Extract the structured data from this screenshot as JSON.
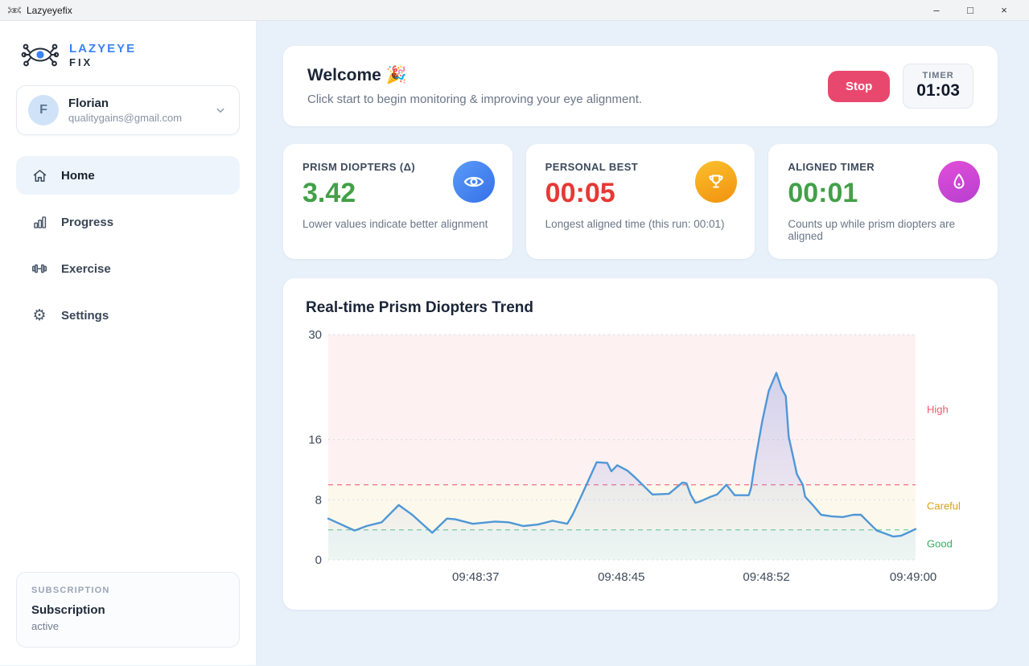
{
  "titlebar": {
    "app_name": "Lazyeyefix",
    "controls": {
      "minimize": "–",
      "maximize": "□",
      "close": "×"
    }
  },
  "colors": {
    "accent_blue": "#3b82f6",
    "stop_button": "#e9486e",
    "value_green": "#43a047",
    "value_red": "#e53935",
    "line_blue": "#4f97d7",
    "icon_circle_blue": "#4285f4",
    "icon_circle_orange": "#f6a21c",
    "icon_circle_magenta": "#cf3fd4"
  },
  "sidebar": {
    "logo": {
      "line1": "LAZYEYE",
      "line2": "FIX",
      "icon": "eye-network-logo"
    },
    "user": {
      "initial": "F",
      "name": "Florian",
      "email": "qualitygains@gmail.com",
      "chevron": "chevron-down-icon"
    },
    "nav": [
      {
        "label": "Home",
        "icon": "home-icon",
        "active": true
      },
      {
        "label": "Progress",
        "icon": "bar-chart-icon",
        "active": false
      },
      {
        "label": "Exercise",
        "icon": "dumbbell-icon",
        "active": false
      },
      {
        "label": "Settings",
        "icon": "gear-icon",
        "active": false
      }
    ],
    "subscription": {
      "heading": "SUBSCRIPTION",
      "title": "Subscription",
      "status": "active"
    }
  },
  "main": {
    "welcome": {
      "title": "Welcome",
      "emoji": "🎉",
      "subtitle": "Click start to begin monitoring & improving your eye alignment.",
      "stop_label": "Stop",
      "timer_label": "TIMER",
      "timer_value": "01:03"
    },
    "stats": [
      {
        "label": "PRISM DIOPTERS (Δ)",
        "value": "3.42",
        "desc": "Lower values indicate better alignment",
        "icon": "eye-icon",
        "value_color": "#43a047",
        "icon_bg": "#4285f4"
      },
      {
        "label": "PERSONAL BEST",
        "value": "00:05",
        "desc": "Longest aligned time (this run: 00:01)",
        "icon": "trophy-icon",
        "value_color": "#e53935",
        "icon_bg": "#f6a21c"
      },
      {
        "label": "ALIGNED TIMER",
        "value": "00:01",
        "desc": "Counts up while prism diopters are aligned",
        "icon": "flame-icon",
        "value_color": "#43a047",
        "icon_bg": "#cf3fd4"
      }
    ]
  },
  "chart_data": {
    "type": "area",
    "title": "Real-time Prism Diopters Trend",
    "xlabel": "",
    "ylabel": "",
    "ylim": [
      0,
      30
    ],
    "yticks": [
      0,
      8,
      16,
      30
    ],
    "x_ticks": [
      "09:48:37",
      "09:48:45",
      "09:48:52",
      "09:49:00"
    ],
    "x_tick_positions": [
      0.251,
      0.499,
      0.746,
      0.996
    ],
    "grid": "dotted horizontal",
    "line_color": "#4f97d7",
    "thresholds": [
      {
        "value": 10,
        "color": "#f2798e",
        "name": "high-limit"
      },
      {
        "value": 4,
        "color": "#82d0a6",
        "name": "good-limit"
      }
    ],
    "zones": [
      {
        "from": 10,
        "to": 30,
        "color": "#fdf1f2",
        "name": "high"
      },
      {
        "from": 4,
        "to": 10,
        "color": "#fcf9ec",
        "name": "careful"
      },
      {
        "from": 0,
        "to": 4,
        "color": "#f0f8f2",
        "name": "good"
      }
    ],
    "zone_labels": [
      {
        "label": "High",
        "value": 20,
        "color": "#f05b72"
      },
      {
        "label": "Careful",
        "value": 7.1,
        "color": "#d7a21a"
      },
      {
        "label": "Good",
        "value": 2.1,
        "color": "#3dab62"
      }
    ],
    "points": [
      [
        0.0,
        5.5
      ],
      [
        0.045,
        3.9
      ],
      [
        0.065,
        4.5
      ],
      [
        0.091,
        5.0
      ],
      [
        0.12,
        7.3
      ],
      [
        0.143,
        6.0
      ],
      [
        0.177,
        3.6
      ],
      [
        0.202,
        5.5
      ],
      [
        0.216,
        5.4
      ],
      [
        0.246,
        4.8
      ],
      [
        0.284,
        5.1
      ],
      [
        0.307,
        5.0
      ],
      [
        0.332,
        4.5
      ],
      [
        0.357,
        4.7
      ],
      [
        0.382,
        5.2
      ],
      [
        0.407,
        4.8
      ],
      [
        0.416,
        6.0
      ],
      [
        0.432,
        8.7
      ],
      [
        0.457,
        13.0
      ],
      [
        0.475,
        12.9
      ],
      [
        0.482,
        11.8
      ],
      [
        0.492,
        12.6
      ],
      [
        0.509,
        11.9
      ],
      [
        0.522,
        11.0
      ],
      [
        0.552,
        8.7
      ],
      [
        0.58,
        8.8
      ],
      [
        0.603,
        10.3
      ],
      [
        0.61,
        10.2
      ],
      [
        0.617,
        8.7
      ],
      [
        0.625,
        7.6
      ],
      [
        0.634,
        7.8
      ],
      [
        0.651,
        8.4
      ],
      [
        0.662,
        8.7
      ],
      [
        0.678,
        10.0
      ],
      [
        0.692,
        8.6
      ],
      [
        0.703,
        8.6
      ],
      [
        0.716,
        8.6
      ],
      [
        0.72,
        9.6
      ],
      [
        0.727,
        13.2
      ],
      [
        0.739,
        18.5
      ],
      [
        0.75,
        22.5
      ],
      [
        0.763,
        24.9
      ],
      [
        0.772,
        22.8
      ],
      [
        0.779,
        21.8
      ],
      [
        0.784,
        16.4
      ],
      [
        0.793,
        13.2
      ],
      [
        0.798,
        11.4
      ],
      [
        0.808,
        10.0
      ],
      [
        0.812,
        8.4
      ],
      [
        0.825,
        7.3
      ],
      [
        0.839,
        6.0
      ],
      [
        0.857,
        5.8
      ],
      [
        0.876,
        5.7
      ],
      [
        0.894,
        6.0
      ],
      [
        0.907,
        6.0
      ],
      [
        0.921,
        4.9
      ],
      [
        0.934,
        3.9
      ],
      [
        0.948,
        3.5
      ],
      [
        0.962,
        3.1
      ],
      [
        0.975,
        3.2
      ],
      [
        0.989,
        3.7
      ],
      [
        1.0,
        4.1
      ]
    ]
  }
}
